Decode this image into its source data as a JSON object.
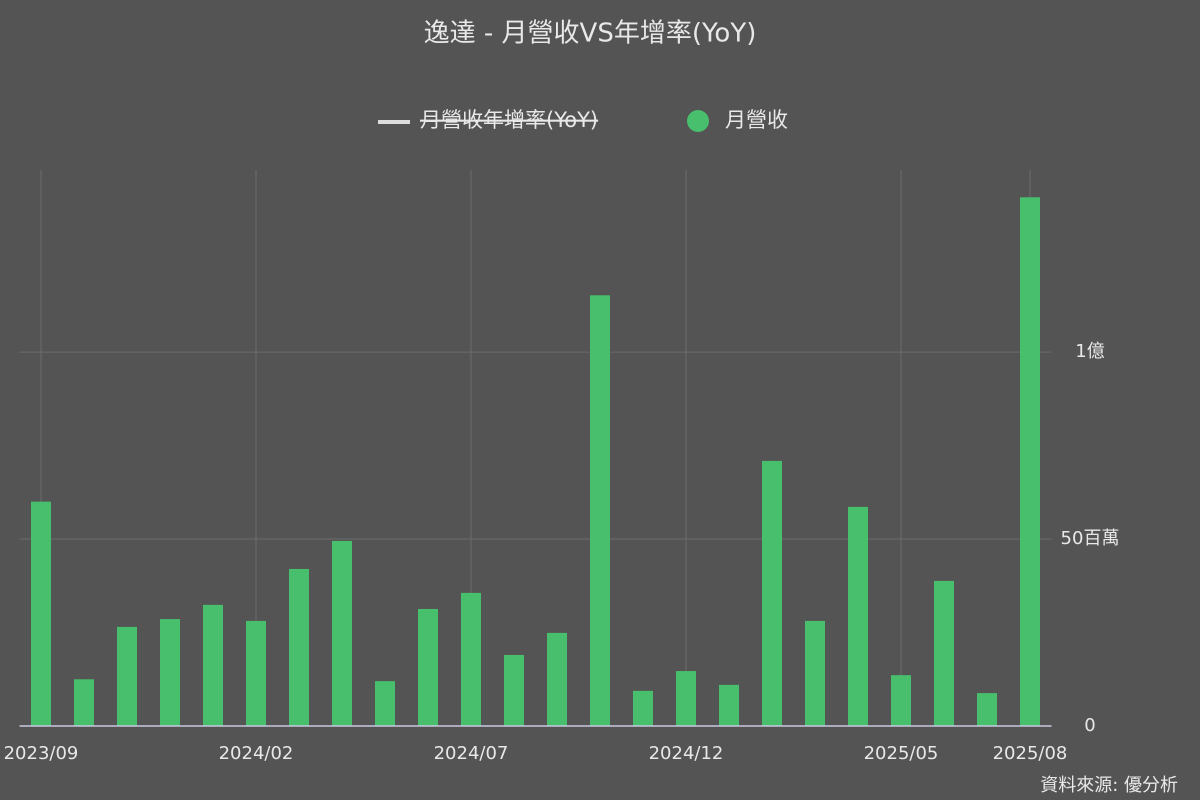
{
  "chart_data": {
    "type": "bar",
    "title": "逸達 - 月營收VS年增率(YoY)",
    "source": "資料來源: 優分析",
    "categories": [
      "2023/09",
      null,
      null,
      null,
      null,
      "2024/02",
      null,
      null,
      null,
      null,
      "2024/07",
      null,
      null,
      null,
      null,
      "2024/12",
      null,
      null,
      null,
      null,
      "2025/05",
      null,
      null,
      "2025/08"
    ],
    "series": [
      {
        "name": "月營收年增率(YoY)",
        "color": "#dddddd",
        "hidden": true
      },
      {
        "name": "月營收",
        "color": "#48bf6c",
        "values": [
          60000000,
          12500000,
          26500000,
          28600000,
          32400000,
          28100000,
          42000000,
          49500000,
          12000000,
          31300000,
          35600000,
          19000000,
          24900000,
          115200000,
          9400000,
          14700000,
          11000000,
          70900000,
          28100000,
          58600000,
          13600000,
          38800000,
          8800000,
          141400000
        ]
      }
    ],
    "ylim": [
      0,
      148700000
    ],
    "yticks": [
      0,
      {
        "value": 50000000,
        "label": "50百萬"
      },
      {
        "value": 100000000,
        "label": "1億"
      }
    ],
    "grid": true
  }
}
